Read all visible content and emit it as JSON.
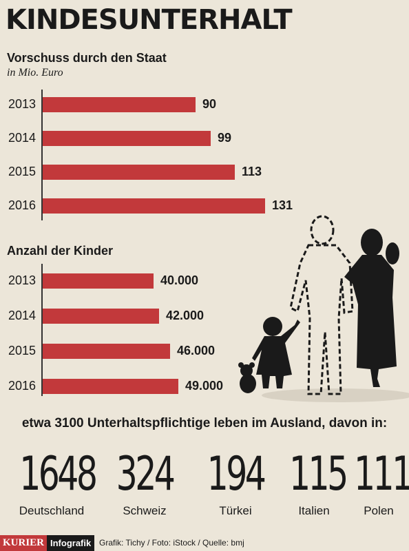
{
  "title": "KINDESUNTERHALT",
  "colors": {
    "bar": "#c2393b",
    "background": "#ece6d9",
    "text": "#1a1a1a"
  },
  "chart_data": [
    {
      "type": "bar",
      "orientation": "horizontal",
      "title": "Vorschuss durch den Staat",
      "subtitle": "in Mio. Euro",
      "categories": [
        "2013",
        "2014",
        "2015",
        "2016"
      ],
      "values": [
        90,
        99,
        113,
        131
      ],
      "value_labels": [
        "90",
        "99",
        "113",
        "131"
      ],
      "xlim": [
        0,
        131
      ]
    },
    {
      "type": "bar",
      "orientation": "horizontal",
      "title": "Anzahl der Kinder",
      "categories": [
        "2013",
        "2014",
        "2015",
        "2016"
      ],
      "values": [
        40000,
        42000,
        46000,
        49000
      ],
      "value_labels": [
        "40.000",
        "42.000",
        "46.000",
        "49.000"
      ],
      "xlim": [
        0,
        49000
      ]
    }
  ],
  "abroad": {
    "title": "etwa 3100 Unterhaltspflichtige leben im Ausland, davon in:",
    "countries": [
      {
        "value": "1648",
        "name": "Deutschland"
      },
      {
        "value": "324",
        "name": "Schweiz"
      },
      {
        "value": "194",
        "name": "Türkei"
      },
      {
        "value": "115",
        "name": "Italien"
      },
      {
        "value": "111",
        "name": "Polen"
      }
    ]
  },
  "footer": {
    "brand": "KURIER",
    "brand_suffix": "Infografik",
    "credit": "Grafik: Tichy / Foto: iStock / Quelle: bmj"
  }
}
